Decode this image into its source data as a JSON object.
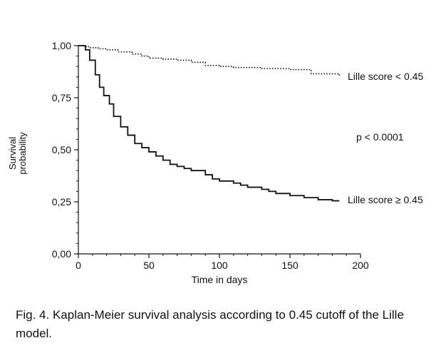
{
  "chart_data": {
    "type": "line",
    "title": "",
    "xlabel": "Time in days",
    "ylabel_line1": "Survival",
    "ylabel_line2": "probability",
    "xlim": [
      0,
      200
    ],
    "ylim": [
      0,
      1
    ],
    "x_ticks": [
      0,
      50,
      100,
      150,
      200
    ],
    "x_tick_labels": [
      "0",
      "50",
      "100",
      "150",
      "200"
    ],
    "y_ticks": [
      0,
      0.25,
      0.5,
      0.75,
      1
    ],
    "y_tick_labels": [
      "0,00",
      "0,25",
      "0,50",
      "0,75",
      "1,00"
    ],
    "grid": false,
    "series": [
      {
        "name": "Lille score < 0.45",
        "style": "dotted",
        "x": [
          0,
          4,
          8,
          14,
          20,
          28,
          38,
          45,
          50,
          60,
          70,
          80,
          90,
          100,
          110,
          130,
          150,
          165,
          185
        ],
        "y": [
          1.0,
          0.995,
          0.99,
          0.985,
          0.98,
          0.97,
          0.96,
          0.95,
          0.94,
          0.935,
          0.93,
          0.92,
          0.905,
          0.9,
          0.895,
          0.89,
          0.885,
          0.865,
          0.85
        ]
      },
      {
        "name": "Lille score ≥ 0.45",
        "style": "solid",
        "x": [
          0,
          5,
          8,
          12,
          15,
          18,
          22,
          25,
          30,
          35,
          40,
          45,
          50,
          55,
          60,
          65,
          70,
          75,
          80,
          90,
          95,
          100,
          110,
          115,
          120,
          130,
          135,
          140,
          150,
          160,
          170,
          180,
          185
        ],
        "y": [
          1.0,
          0.98,
          0.93,
          0.86,
          0.8,
          0.76,
          0.72,
          0.66,
          0.61,
          0.57,
          0.53,
          0.51,
          0.49,
          0.47,
          0.45,
          0.43,
          0.42,
          0.41,
          0.4,
          0.38,
          0.36,
          0.35,
          0.34,
          0.33,
          0.32,
          0.31,
          0.3,
          0.29,
          0.28,
          0.27,
          0.26,
          0.255,
          0.255
        ]
      }
    ],
    "annotation": "p < 0.0001"
  },
  "caption": "Fig. 4.  Kaplan-Meier survival analysis according to 0.45 cutoff of the Lille model."
}
